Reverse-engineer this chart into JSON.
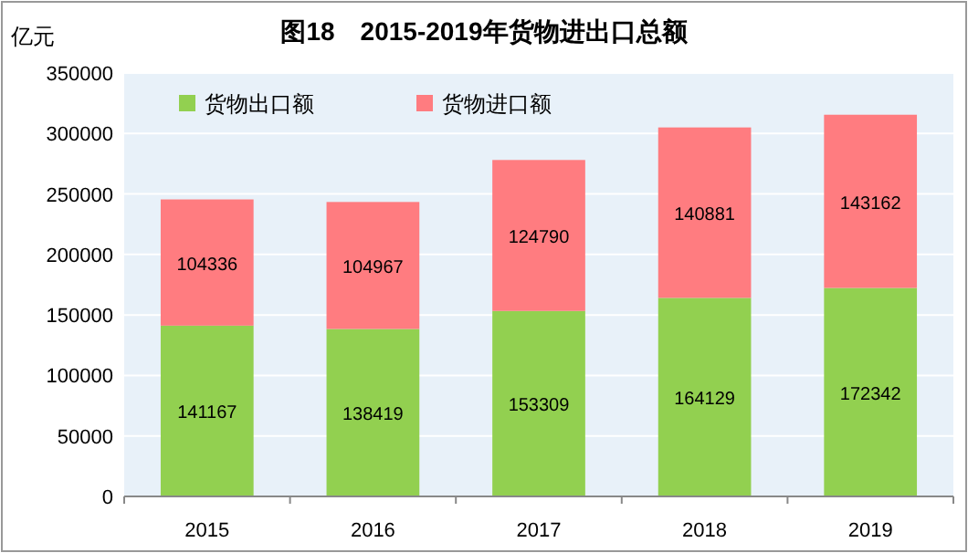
{
  "chart_data": {
    "type": "bar",
    "title": "图18　2015-2019年货物进出口总额",
    "ylabel": "亿元",
    "categories": [
      "2015",
      "2016",
      "2017",
      "2018",
      "2019"
    ],
    "stacked": true,
    "data_labels": true,
    "grid": "y",
    "legend": "top left",
    "series": [
      {
        "name": "货物出口额",
        "color": "#92d050",
        "values": [
          141167,
          138419,
          153309,
          164129,
          172342
        ]
      },
      {
        "name": "货物进口额",
        "color": "#ff7c80",
        "values": [
          104336,
          104967,
          124790,
          140881,
          143162
        ]
      }
    ],
    "ylim": [
      0,
      350000
    ],
    "yticks": [
      0,
      50000,
      100000,
      150000,
      200000,
      250000,
      300000,
      350000
    ]
  }
}
